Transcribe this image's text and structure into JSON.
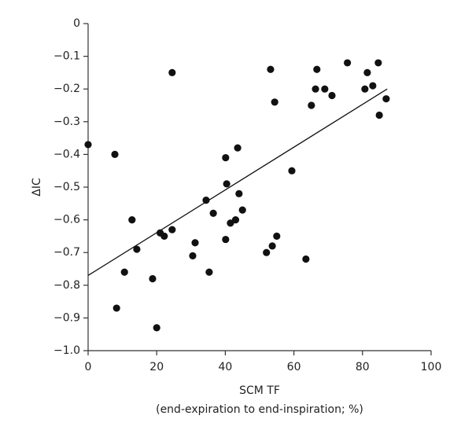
{
  "chart_data": {
    "type": "scatter",
    "xlabel": [
      "SCM TF",
      "(end-expiration to end-inspiration; %)"
    ],
    "ylabel": "ΔIC",
    "x": [
      0,
      7.8,
      8.3,
      10.6,
      12.8,
      14.2,
      18.8,
      20,
      21,
      22.2,
      24.5,
      24.5,
      30.5,
      31.2,
      34.4,
      35.3,
      36.5,
      40.1,
      40.4,
      40.1,
      41.5,
      43,
      43.6,
      44,
      45,
      52,
      53.2,
      53.7,
      54.4,
      55,
      59.4,
      63.5,
      65.1,
      66.3,
      66.7,
      69,
      71.1,
      75.6,
      80.7,
      81.4,
      83,
      84.6,
      84.9,
      86.9
    ],
    "values": [
      -0.37,
      -0.4,
      -0.87,
      -0.76,
      -0.6,
      -0.69,
      -0.78,
      -0.93,
      -0.64,
      -0.65,
      -0.15,
      -0.63,
      -0.71,
      -0.67,
      -0.54,
      -0.76,
      -0.58,
      -0.41,
      -0.49,
      -0.66,
      -0.61,
      -0.6,
      -0.38,
      -0.52,
      -0.57,
      -0.7,
      -0.14,
      -0.68,
      -0.24,
      -0.65,
      -0.45,
      -0.72,
      -0.25,
      -0.2,
      -0.14,
      -0.2,
      -0.22,
      -0.12,
      -0.2,
      -0.15,
      -0.19,
      -0.12,
      -0.28,
      -0.23
    ],
    "color": "#111111",
    "trend_line": {
      "x": [
        0,
        87.2
      ],
      "y": [
        -0.77,
        -0.2
      ],
      "color": "#111111"
    },
    "xlim": [
      0,
      100
    ],
    "xticks": [
      0,
      20,
      40,
      60,
      80,
      100
    ],
    "ylim": [
      -1.0,
      0
    ],
    "yticks": [
      0,
      {
        "value": -0.1,
        "label": "−0.1"
      },
      {
        "value": -0.2,
        "label": "−0.2"
      },
      {
        "value": -0.3,
        "label": "−0.3"
      },
      {
        "value": -0.4,
        "label": "−0.4"
      },
      {
        "value": -0.5,
        "label": "−0.5"
      },
      {
        "value": -0.6,
        "label": "−0.6"
      },
      {
        "value": -0.7,
        "label": "−0.7"
      },
      {
        "value": -0.8,
        "label": "−0.8"
      },
      {
        "value": -0.9,
        "label": "−0.9"
      },
      {
        "value": -1.0,
        "label": "−1.0"
      }
    ],
    "grid": false
  }
}
